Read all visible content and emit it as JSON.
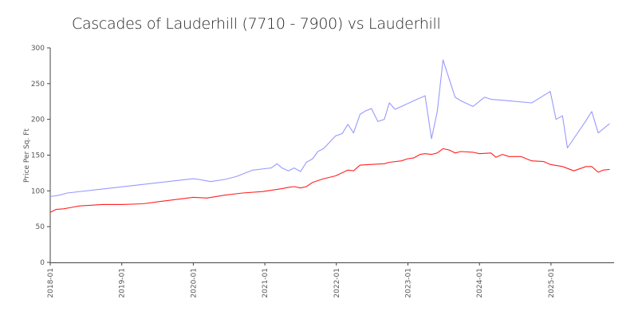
{
  "chart_data": {
    "type": "line",
    "title": "Cascades of Lauderhill (7710 - 7900) vs Lauderhill",
    "xlabel": "",
    "ylabel": "Price Per Sq. Ft",
    "ylim": [
      0,
      300
    ],
    "xlim": [
      2018.0,
      2025.85
    ],
    "yticks": [
      0,
      50,
      100,
      150,
      200,
      250,
      300
    ],
    "xticks": [
      {
        "value": 2018,
        "label": "2018-01"
      },
      {
        "value": 2019,
        "label": "2019-01"
      },
      {
        "value": 2020,
        "label": "2020-01"
      },
      {
        "value": 2021,
        "label": "2021-01"
      },
      {
        "value": 2022,
        "label": "2022-01"
      },
      {
        "value": 2023,
        "label": "2023-01"
      },
      {
        "value": 2024,
        "label": "2024-01"
      },
      {
        "value": 2025,
        "label": "2025-01"
      }
    ],
    "grid": false,
    "legend": "none",
    "series": [
      {
        "color": "#9999ff",
        "points": [
          [
            2018.0,
            92
          ],
          [
            2018.13,
            94
          ],
          [
            2018.24,
            97
          ],
          [
            2020.0,
            117
          ],
          [
            2020.08,
            116
          ],
          [
            2020.24,
            113
          ],
          [
            2020.44,
            116
          ],
          [
            2020.6,
            120
          ],
          [
            2020.83,
            129
          ],
          [
            2021.0,
            131
          ],
          [
            2021.09,
            132
          ],
          [
            2021.17,
            138
          ],
          [
            2021.24,
            132
          ],
          [
            2021.33,
            128
          ],
          [
            2021.41,
            132
          ],
          [
            2021.5,
            127
          ],
          [
            2021.58,
            140
          ],
          [
            2021.67,
            145
          ],
          [
            2021.74,
            155
          ],
          [
            2021.82,
            159
          ],
          [
            2021.99,
            177
          ],
          [
            2022.08,
            180
          ],
          [
            2022.16,
            193
          ],
          [
            2022.24,
            181
          ],
          [
            2022.33,
            207
          ],
          [
            2022.41,
            212
          ],
          [
            2022.49,
            215
          ],
          [
            2022.58,
            197
          ],
          [
            2022.67,
            200
          ],
          [
            2022.74,
            223
          ],
          [
            2022.82,
            214
          ],
          [
            2023.08,
            226
          ],
          [
            2023.24,
            233
          ],
          [
            2023.33,
            173
          ],
          [
            2023.41,
            211
          ],
          [
            2023.49,
            283
          ],
          [
            2023.66,
            231
          ],
          [
            2023.74,
            226
          ],
          [
            2023.91,
            218
          ],
          [
            2024.07,
            231
          ],
          [
            2024.17,
            228
          ],
          [
            2024.41,
            226
          ],
          [
            2024.73,
            223
          ],
          [
            2024.99,
            239
          ],
          [
            2025.07,
            200
          ],
          [
            2025.16,
            205
          ],
          [
            2025.23,
            160
          ],
          [
            2025.48,
            197
          ],
          [
            2025.57,
            211
          ],
          [
            2025.66,
            181
          ],
          [
            2025.82,
            194
          ]
        ]
      },
      {
        "color": "#ff2222",
        "points": [
          [
            2018.0,
            70
          ],
          [
            2018.08,
            74
          ],
          [
            2018.19,
            75
          ],
          [
            2018.3,
            77
          ],
          [
            2018.41,
            79
          ],
          [
            2018.58,
            80
          ],
          [
            2018.74,
            81
          ],
          [
            2019.0,
            81
          ],
          [
            2019.3,
            82
          ],
          [
            2019.52,
            85
          ],
          [
            2020.0,
            91
          ],
          [
            2020.19,
            90
          ],
          [
            2020.44,
            94
          ],
          [
            2020.69,
            97
          ],
          [
            2020.97,
            99
          ],
          [
            2021.24,
            103
          ],
          [
            2021.33,
            105
          ],
          [
            2021.41,
            106
          ],
          [
            2021.5,
            104
          ],
          [
            2021.58,
            106
          ],
          [
            2021.67,
            112
          ],
          [
            2021.82,
            117
          ],
          [
            2021.99,
            121
          ],
          [
            2022.16,
            129
          ],
          [
            2022.24,
            128
          ],
          [
            2022.33,
            136
          ],
          [
            2022.49,
            137
          ],
          [
            2022.67,
            138
          ],
          [
            2022.74,
            140
          ],
          [
            2022.91,
            142
          ],
          [
            2023.0,
            145
          ],
          [
            2023.08,
            146
          ],
          [
            2023.17,
            151
          ],
          [
            2023.24,
            152
          ],
          [
            2023.33,
            151
          ],
          [
            2023.41,
            153
          ],
          [
            2023.49,
            159
          ],
          [
            2023.58,
            157
          ],
          [
            2023.66,
            153
          ],
          [
            2023.74,
            155
          ],
          [
            2023.91,
            154
          ],
          [
            2024.0,
            152
          ],
          [
            2024.16,
            153
          ],
          [
            2024.23,
            147
          ],
          [
            2024.32,
            151
          ],
          [
            2024.41,
            148
          ],
          [
            2024.58,
            148
          ],
          [
            2024.73,
            142
          ],
          [
            2024.9,
            141
          ],
          [
            2024.99,
            137
          ],
          [
            2025.16,
            134
          ],
          [
            2025.32,
            128
          ],
          [
            2025.49,
            134
          ],
          [
            2025.57,
            134
          ],
          [
            2025.66,
            126
          ],
          [
            2025.73,
            129
          ],
          [
            2025.82,
            130
          ]
        ]
      }
    ]
  }
}
